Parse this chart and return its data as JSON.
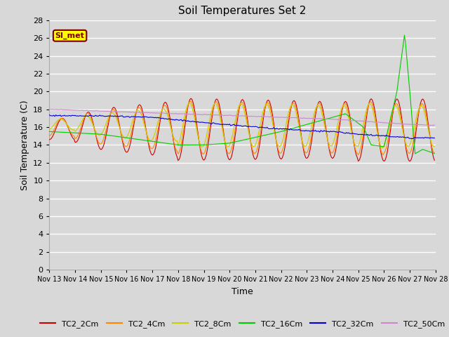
{
  "title": "Soil Temperatures Set 2",
  "xlabel": "Time",
  "ylabel": "Soil Temperature (C)",
  "ylim": [
    0,
    28
  ],
  "yticks": [
    0,
    2,
    4,
    6,
    8,
    10,
    12,
    14,
    16,
    18,
    20,
    22,
    24,
    26,
    28
  ],
  "figsize": [
    6.4,
    4.8
  ],
  "dpi": 100,
  "background_color": "#d8d8d8",
  "grid_color": "#ffffff",
  "annotation_label": "SI_met",
  "annotation_box_color": "#ffff00",
  "annotation_border_color": "#800000",
  "legend_colors": [
    "#cc0000",
    "#ff8800",
    "#cccc00",
    "#00cc00",
    "#0000dd",
    "#cc88cc"
  ],
  "legend_labels": [
    "TC2_2Cm",
    "TC2_4Cm",
    "TC2_8Cm",
    "TC2_16Cm",
    "TC2_32Cm",
    "TC2_50Cm"
  ],
  "xtick_labels": [
    "Nov 13",
    "Nov 14",
    "Nov 15",
    "Nov 16",
    "Nov 17",
    "Nov 18",
    "Nov 19",
    "Nov 20",
    "Nov 21",
    "Nov 22",
    "Nov 23",
    "Nov 24",
    "Nov 25",
    "Nov 26",
    "Nov 27",
    "Nov 28"
  ],
  "n_days": 15,
  "pts_per_day": 24
}
